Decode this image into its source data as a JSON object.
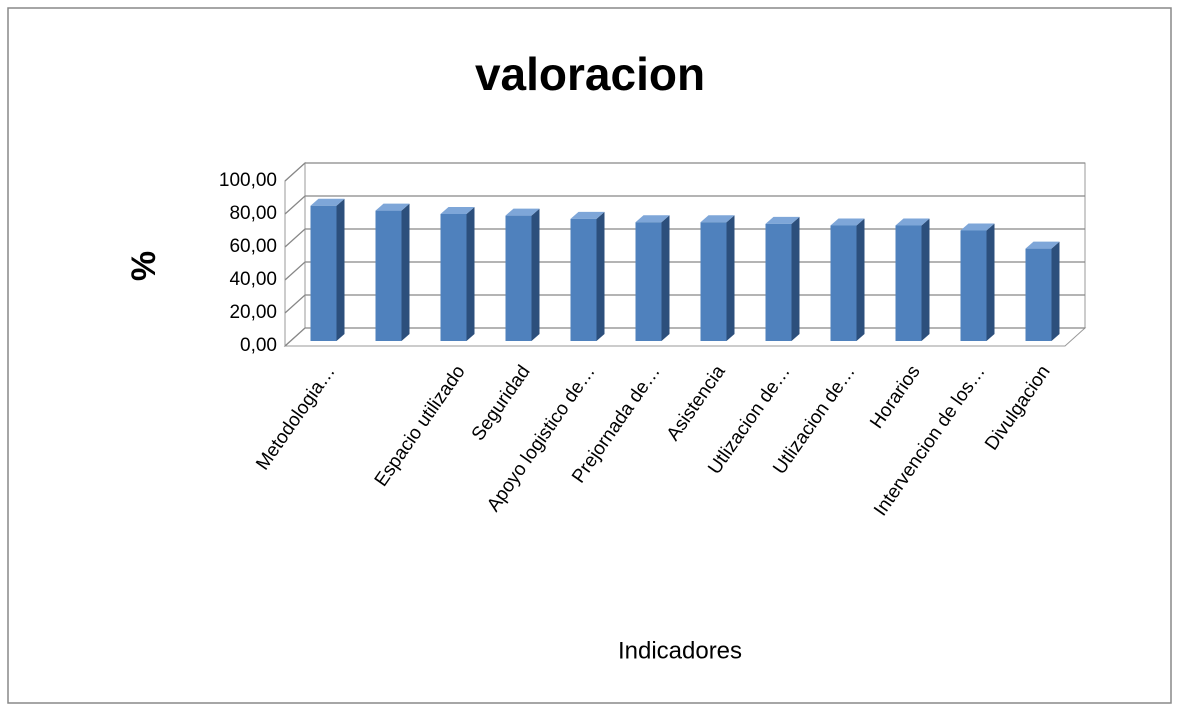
{
  "chart_data": {
    "type": "bar3d",
    "title": "valoracion",
    "x_label": "Indicadores",
    "y_label": "%",
    "categories": [
      "Metodologia…",
      null,
      "Espacio utilizado",
      "Seguridad",
      "Apoyo  logistico de…",
      "Prejornada de…",
      "Asistencia",
      "Utlizacion de…",
      "Utlizacion de…",
      "Horarios",
      "Intervencion de los…",
      "Divulgacion"
    ],
    "values": [
      82,
      79,
      77,
      76,
      74,
      72,
      72,
      71,
      70,
      70,
      67,
      56
    ],
    "color": "#4f81bd",
    "ylim": [
      0,
      100
    ],
    "yticks": [
      {
        "value": 0,
        "label": "0,00"
      },
      {
        "value": 20,
        "label": "20,00"
      },
      {
        "value": 40,
        "label": "40,00"
      },
      {
        "value": 60,
        "label": "60,00"
      },
      {
        "value": 80,
        "label": "80,00"
      },
      {
        "value": 100,
        "label": "100,00"
      }
    ],
    "grid": true
  }
}
